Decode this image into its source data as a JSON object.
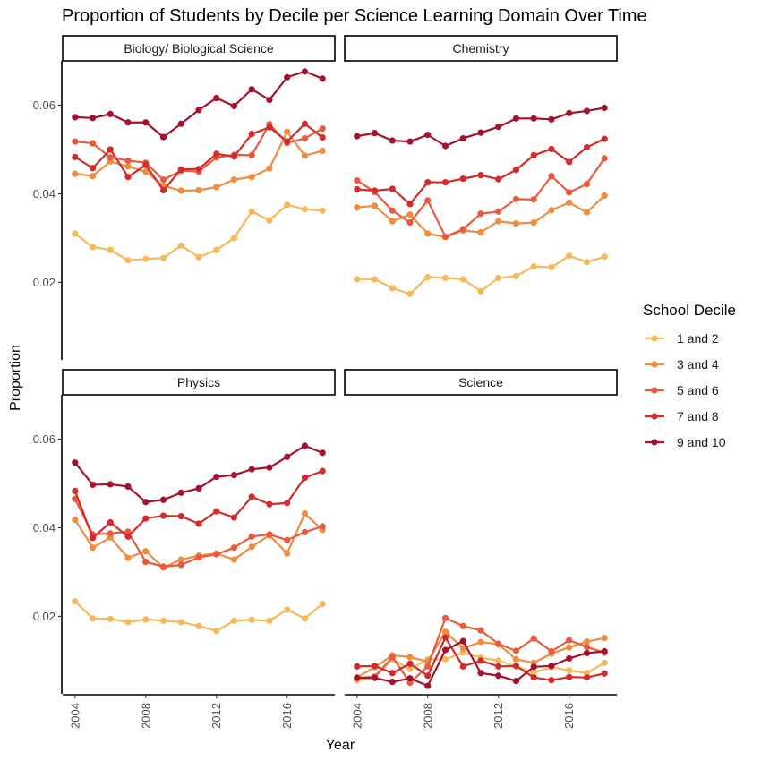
{
  "chart_data": {
    "type": "line",
    "title": "Proportion of Students by Decile per Science Learning Domain Over Time",
    "xlabel": "Year",
    "ylabel": "Proportion",
    "x": [
      2004,
      2005,
      2006,
      2007,
      2008,
      2009,
      2010,
      2011,
      2012,
      2013,
      2014,
      2015,
      2016,
      2017,
      2018
    ],
    "xticks": [
      2004,
      2008,
      2012,
      2016
    ],
    "yticks": [
      0.02,
      0.04,
      0.06
    ],
    "ylim": [
      0.0025,
      0.07
    ],
    "xlim": [
      2003.3,
      2018.7
    ],
    "legend": {
      "title": "School Decile",
      "position": "right",
      "entries": [
        "1 and 2",
        "3 and 4",
        "5 and 6",
        "7 and 8",
        "9 and 10"
      ]
    },
    "colors": [
      "#f5b95c",
      "#f08c3d",
      "#e85a3e",
      "#d52a2a",
      "#a5122e"
    ],
    "grid": false,
    "panels": [
      {
        "name": "Biology/ Biological Science",
        "series": [
          {
            "name": "1 and 2",
            "values": [
              0.031,
              0.028,
              0.0273,
              0.025,
              0.0253,
              0.0255,
              0.0283,
              0.0257,
              0.0273,
              0.03,
              0.036,
              0.034,
              0.0375,
              0.0365,
              0.0362
            ]
          },
          {
            "name": "3 and 4",
            "values": [
              0.0445,
              0.044,
              0.0473,
              0.0462,
              0.045,
              0.0418,
              0.0407,
              0.0408,
              0.0415,
              0.0432,
              0.0438,
              0.0457,
              0.054,
              0.0486,
              0.0497
            ]
          },
          {
            "name": "5 and 6",
            "values": [
              0.0518,
              0.0514,
              0.0482,
              0.0475,
              0.047,
              0.0432,
              0.0452,
              0.045,
              0.0482,
              0.0488,
              0.0487,
              0.0557,
              0.0515,
              0.0525,
              0.0547
            ]
          },
          {
            "name": "7 and 8",
            "values": [
              0.0483,
              0.0458,
              0.05,
              0.0438,
              0.0465,
              0.0408,
              0.0455,
              0.0456,
              0.049,
              0.0484,
              0.0535,
              0.055,
              0.0518,
              0.0558,
              0.0527
            ]
          },
          {
            "name": "9 and 10",
            "values": [
              0.0573,
              0.0571,
              0.058,
              0.0561,
              0.0561,
              0.0528,
              0.0558,
              0.0589,
              0.0616,
              0.0598,
              0.0636,
              0.0612,
              0.0663,
              0.0676,
              0.066
            ]
          }
        ]
      },
      {
        "name": "Chemistry",
        "series": [
          {
            "name": "1 and 2",
            "values": [
              0.0207,
              0.0207,
              0.0187,
              0.0174,
              0.0212,
              0.021,
              0.0207,
              0.018,
              0.021,
              0.0214,
              0.0236,
              0.0234,
              0.026,
              0.0246,
              0.0258
            ]
          },
          {
            "name": "3 and 4",
            "values": [
              0.0369,
              0.0373,
              0.0338,
              0.0353,
              0.031,
              0.0302,
              0.0317,
              0.0313,
              0.0338,
              0.0333,
              0.0335,
              0.0363,
              0.038,
              0.0358,
              0.0396
            ]
          },
          {
            "name": "5 and 6",
            "values": [
              0.043,
              0.0404,
              0.0362,
              0.0335,
              0.0385,
              0.0303,
              0.032,
              0.0355,
              0.036,
              0.0388,
              0.0387,
              0.044,
              0.0403,
              0.0422,
              0.048
            ]
          },
          {
            "name": "7 and 8",
            "values": [
              0.041,
              0.0407,
              0.0411,
              0.0377,
              0.0426,
              0.0426,
              0.0434,
              0.0442,
              0.0433,
              0.0454,
              0.0487,
              0.0501,
              0.0472,
              0.0505,
              0.0524
            ]
          },
          {
            "name": "9 and 10",
            "values": [
              0.053,
              0.0537,
              0.052,
              0.0518,
              0.0533,
              0.0508,
              0.0525,
              0.0538,
              0.0551,
              0.057,
              0.057,
              0.0568,
              0.0582,
              0.0587,
              0.0594
            ]
          }
        ]
      },
      {
        "name": "Physics",
        "series": [
          {
            "name": "1 and 2",
            "values": [
              0.0234,
              0.0195,
              0.0194,
              0.0187,
              0.0193,
              0.019,
              0.0187,
              0.0178,
              0.0167,
              0.019,
              0.0192,
              0.019,
              0.0215,
              0.0195,
              0.0228
            ]
          },
          {
            "name": "3 and 4",
            "values": [
              0.0418,
              0.0355,
              0.0378,
              0.0332,
              0.0347,
              0.031,
              0.0328,
              0.0337,
              0.0342,
              0.0328,
              0.0357,
              0.0383,
              0.0342,
              0.0432,
              0.0395
            ]
          },
          {
            "name": "5 and 6",
            "values": [
              0.0465,
              0.0385,
              0.0387,
              0.0391,
              0.0323,
              0.0312,
              0.0316,
              0.0333,
              0.034,
              0.0355,
              0.038,
              0.0385,
              0.0372,
              0.039,
              0.0403
            ]
          },
          {
            "name": "7 and 8",
            "values": [
              0.0483,
              0.0377,
              0.0412,
              0.038,
              0.0421,
              0.0427,
              0.0426,
              0.0409,
              0.0437,
              0.0423,
              0.047,
              0.0453,
              0.0456,
              0.0513,
              0.0528
            ]
          },
          {
            "name": "9 and 10",
            "values": [
              0.0547,
              0.0497,
              0.0498,
              0.0493,
              0.0458,
              0.0463,
              0.0479,
              0.0489,
              0.0515,
              0.0519,
              0.0532,
              0.0536,
              0.056,
              0.0585,
              0.0569
            ]
          }
        ]
      },
      {
        "name": "Science",
        "series": [
          {
            "name": "1 and 2",
            "values": [
              0.0055,
              0.0062,
              0.0103,
              0.0081,
              0.0103,
              0.0103,
              0.0118,
              0.0107,
              0.01,
              0.0087,
              0.0073,
              0.0085,
              0.0078,
              0.0072,
              0.0095
            ]
          },
          {
            "name": "3 and 4",
            "values": [
              0.0062,
              0.0085,
              0.0112,
              0.0108,
              0.0098,
              0.0165,
              0.0128,
              0.0142,
              0.0137,
              0.0103,
              0.0095,
              0.0116,
              0.013,
              0.0143,
              0.0151
            ]
          },
          {
            "name": "5 and 6",
            "values": [
              0.0061,
              0.0064,
              0.0108,
              0.005,
              0.0087,
              0.0196,
              0.0178,
              0.0168,
              0.0138,
              0.0122,
              0.015,
              0.0121,
              0.0146,
              0.0131,
              0.0118
            ]
          },
          {
            "name": "7 and 8",
            "values": [
              0.0087,
              0.0088,
              0.0072,
              0.0093,
              0.0066,
              0.0152,
              0.0087,
              0.01,
              0.0087,
              0.0088,
              0.0062,
              0.0056,
              0.0063,
              0.0062,
              0.0071
            ]
          },
          {
            "name": "9 and 10",
            "values": [
              0.0061,
              0.0061,
              0.0052,
              0.006,
              0.0043,
              0.0124,
              0.0144,
              0.0072,
              0.0066,
              0.0054,
              0.0086,
              0.0088,
              0.0105,
              0.0117,
              0.0121
            ]
          }
        ]
      }
    ]
  }
}
